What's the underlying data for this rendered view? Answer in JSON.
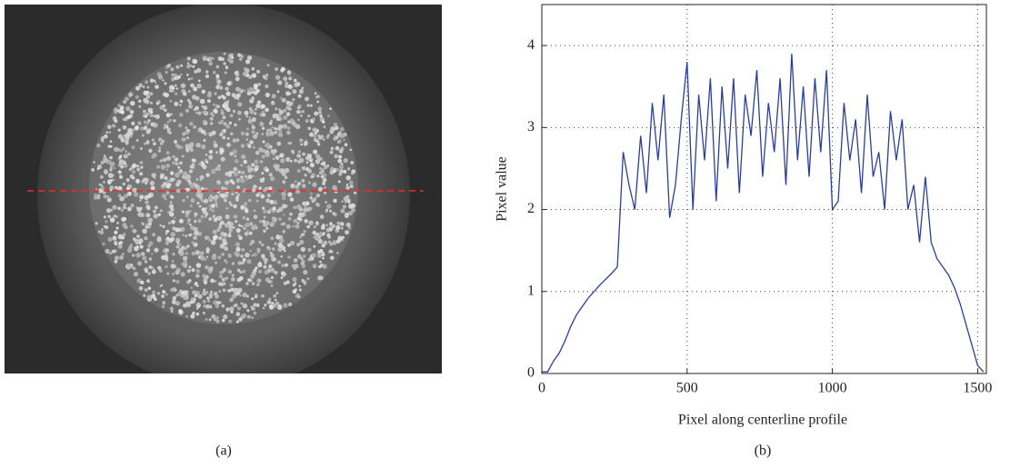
{
  "image": {
    "caption": "(a)"
  },
  "chart_data": {
    "type": "line",
    "caption": "(b)",
    "xlabel": "Pixel along centerline profile",
    "ylabel": "Pixel value",
    "x": [
      0,
      20,
      40,
      60,
      80,
      100,
      120,
      140,
      160,
      180,
      200,
      220,
      240,
      260,
      280,
      300,
      320,
      340,
      360,
      380,
      400,
      420,
      440,
      460,
      480,
      500,
      520,
      540,
      560,
      580,
      600,
      620,
      640,
      660,
      680,
      700,
      720,
      740,
      760,
      780,
      800,
      820,
      840,
      860,
      880,
      900,
      920,
      940,
      960,
      980,
      1000,
      1020,
      1040,
      1060,
      1080,
      1100,
      1120,
      1140,
      1160,
      1180,
      1200,
      1220,
      1240,
      1260,
      1280,
      1300,
      1320,
      1340,
      1360,
      1380,
      1400,
      1420,
      1440,
      1460,
      1480,
      1500,
      1520
    ],
    "series": [
      {
        "color": "#2b3f99",
        "values": [
          0.02,
          0.02,
          0.15,
          0.25,
          0.4,
          0.58,
          0.72,
          0.82,
          0.92,
          1.0,
          1.08,
          1.15,
          1.22,
          1.3,
          2.7,
          2.3,
          2.0,
          2.9,
          2.2,
          3.3,
          2.6,
          3.4,
          1.9,
          2.3,
          3.1,
          3.8,
          2.0,
          3.4,
          2.6,
          3.6,
          2.1,
          3.5,
          2.5,
          3.6,
          2.2,
          3.4,
          2.9,
          3.7,
          2.4,
          3.3,
          2.7,
          3.6,
          2.3,
          3.9,
          2.6,
          3.5,
          2.4,
          3.6,
          2.7,
          3.7,
          2.0,
          2.1,
          3.3,
          2.6,
          3.1,
          2.2,
          3.4,
          2.4,
          2.7,
          2.0,
          3.2,
          2.6,
          3.1,
          2.0,
          2.3,
          1.6,
          2.4,
          1.6,
          1.4,
          1.3,
          1.2,
          1.05,
          0.85,
          0.6,
          0.35,
          0.1,
          0.02
        ]
      }
    ],
    "xlim": [
      0,
      1530
    ],
    "ylim": [
      0,
      4.5
    ],
    "xticks": [
      0,
      500,
      1000,
      1500
    ],
    "yticks": [
      0,
      1,
      2,
      3,
      4
    ],
    "grid": true
  }
}
